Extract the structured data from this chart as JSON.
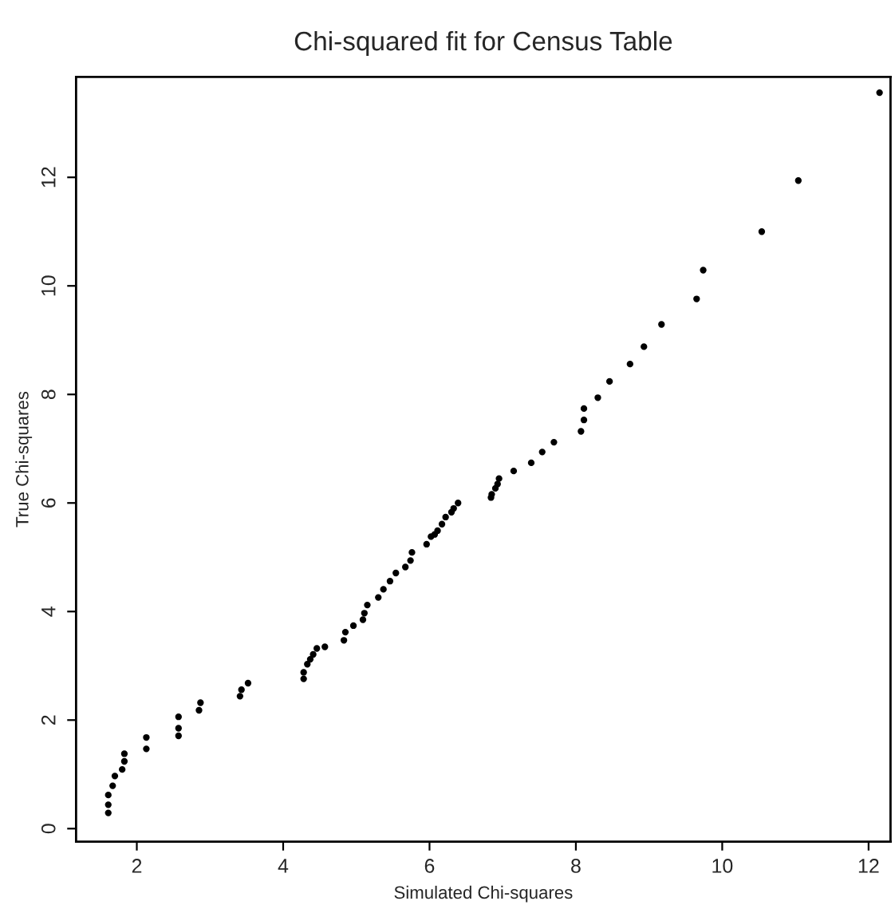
{
  "chart_data": {
    "type": "scatter",
    "title": "Chi-squared fit for Census Table",
    "xlabel": "Simulated Chi-squares",
    "ylabel": "True Chi-squares",
    "xlim": [
      1.17,
      12.3
    ],
    "ylim": [
      -0.24,
      13.85
    ],
    "xticks": [
      2,
      4,
      6,
      8,
      10,
      12
    ],
    "yticks": [
      0,
      2,
      4,
      6,
      8,
      10,
      12
    ],
    "grid": false,
    "marker": "circle",
    "series": [
      {
        "color": "#000000",
        "x": [
          1.61,
          1.61,
          1.61,
          1.67,
          1.7,
          1.8,
          1.83,
          1.83,
          2.13,
          2.13,
          2.57,
          2.57,
          2.57,
          2.85,
          2.87,
          3.41,
          3.43,
          3.52,
          4.28,
          4.28,
          4.33,
          4.37,
          4.41,
          4.46,
          4.57,
          4.83,
          4.85,
          4.96,
          5.09,
          5.11,
          5.15,
          5.3,
          5.37,
          5.46,
          5.54,
          5.67,
          5.74,
          5.76,
          5.96,
          6.02,
          6.07,
          6.11,
          6.17,
          6.22,
          6.3,
          6.33,
          6.39,
          6.84,
          6.85,
          6.9,
          6.93,
          6.95,
          7.15,
          7.39,
          7.54,
          7.7,
          8.07,
          8.11,
          8.11,
          8.3,
          8.46,
          8.74,
          8.93,
          9.17,
          9.65,
          9.74,
          10.54,
          11.04,
          12.15
        ],
        "values": [
          0.29,
          0.44,
          0.62,
          0.79,
          0.97,
          1.09,
          1.24,
          1.38,
          1.47,
          1.68,
          1.71,
          1.85,
          2.06,
          2.18,
          2.32,
          2.44,
          2.56,
          2.68,
          2.76,
          2.88,
          3.03,
          3.12,
          3.21,
          3.32,
          3.35,
          3.47,
          3.62,
          3.74,
          3.85,
          3.97,
          4.12,
          4.26,
          4.41,
          4.56,
          4.71,
          4.82,
          4.94,
          5.09,
          5.24,
          5.38,
          5.42,
          5.49,
          5.61,
          5.74,
          5.83,
          5.9,
          6.0,
          6.1,
          6.16,
          6.27,
          6.35,
          6.45,
          6.59,
          6.74,
          6.94,
          7.12,
          7.32,
          7.53,
          7.74,
          7.94,
          8.24,
          8.56,
          8.88,
          9.29,
          9.76,
          10.29,
          11.0,
          11.94,
          13.56
        ]
      }
    ]
  }
}
